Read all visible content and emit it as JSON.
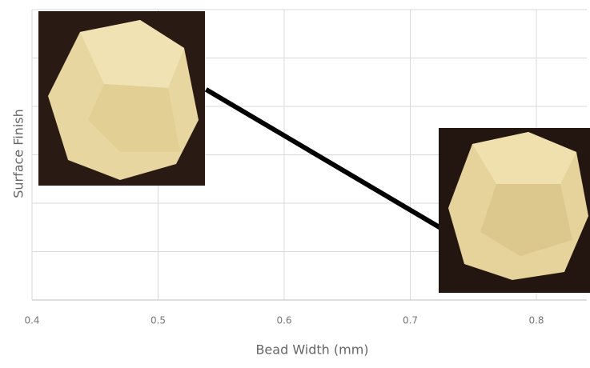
{
  "chart_data": {
    "type": "line",
    "x_label": "Bead Width (mm)",
    "y_label": "Surface Finish",
    "x": [
      0.538,
      0.724
    ],
    "series": [
      {
        "color": "#000000",
        "values": [
          4.35,
          1.49
        ]
      }
    ],
    "xlim": [
      0.4,
      0.84
    ],
    "xticks": [
      0.4,
      0.5,
      0.6,
      0.7,
      0.8
    ],
    "ylim": [
      0,
      6
    ],
    "yticks": [
      0,
      1,
      2,
      3,
      4,
      5,
      6
    ],
    "grid": true
  }
}
